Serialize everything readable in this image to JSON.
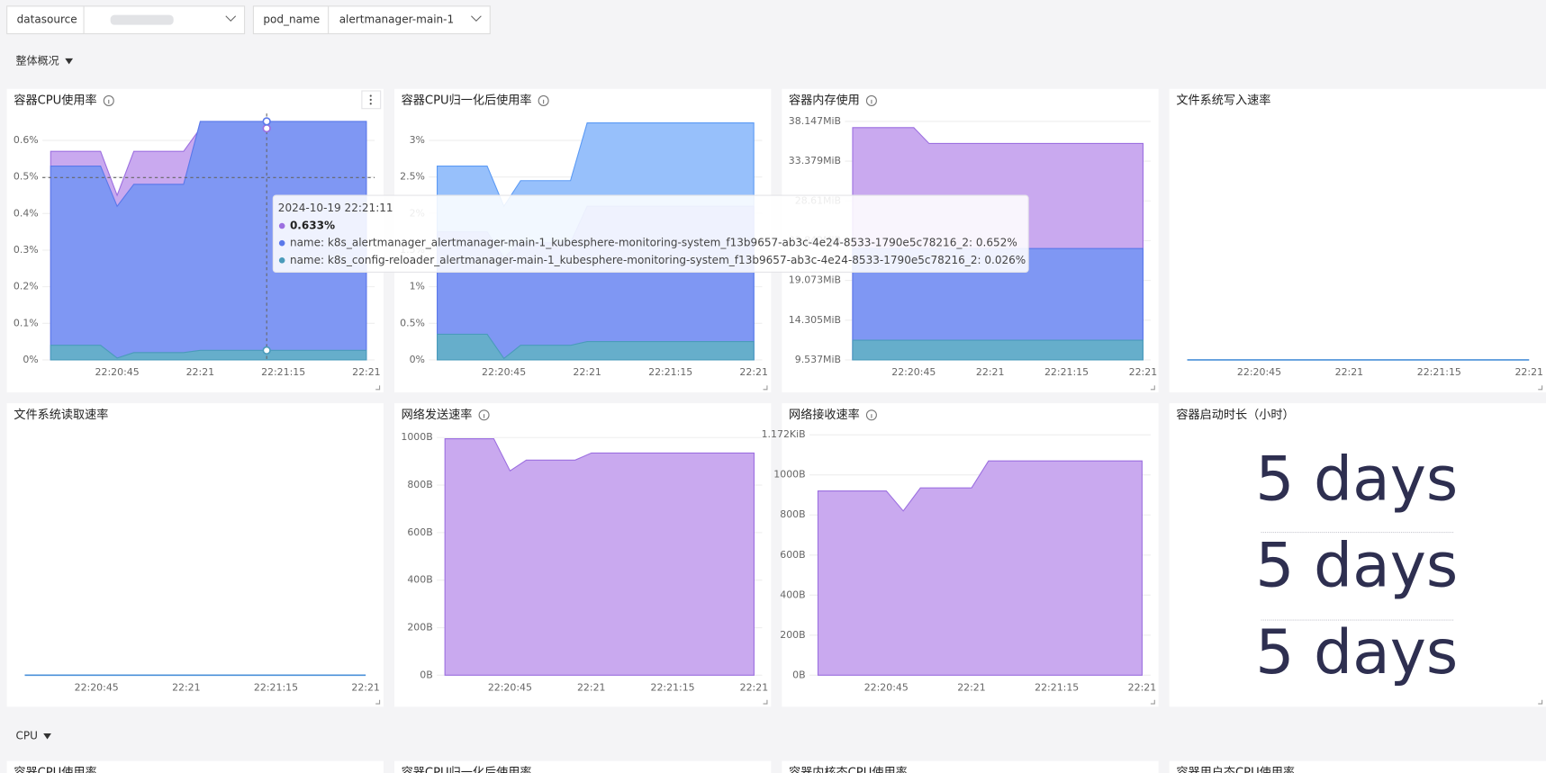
{
  "filters": [
    {
      "label": "datasource"
    },
    {
      "label": "pod_name",
      "value": "alertmanager-main-1"
    }
  ],
  "sections": [
    "整体概况",
    "CPU"
  ],
  "panels": [
    {
      "title": "容器CPU使用率",
      "type": "area",
      "info": true,
      "categories": [
        null,
        null,
        null,
        null,
        "22:20:45",
        null,
        null,
        null,
        null,
        "22:21",
        null,
        null,
        null,
        null,
        "22:21:15",
        null,
        null,
        null,
        null,
        "22:21"
      ],
      "ylim": [
        0,
        0.66
      ],
      "yticks": [
        {
          "value": 0,
          "label": "0%"
        },
        {
          "value": 0.1,
          "label": "0.1%"
        },
        {
          "value": 0.2,
          "label": "0.2%"
        },
        {
          "value": 0.3,
          "label": "0.3%"
        },
        {
          "value": 0.4,
          "label": "0.4%"
        },
        {
          "value": 0.5,
          "label": "0.5%"
        },
        {
          "value": 0.6,
          "label": "0.6%"
        }
      ],
      "series": [
        {
          "color": "#c9a9ef",
          "values": [
            0.57,
            0.57,
            0.57,
            0.57,
            0.45,
            0.57,
            0.57,
            0.57,
            0.57,
            0.633,
            0.633,
            0.633,
            0.633,
            0.633,
            0.633,
            0.633,
            0.633,
            0.633,
            0.633,
            0.633
          ]
        },
        {
          "color": "#7f97f3",
          "values": [
            0.53,
            0.53,
            0.53,
            0.53,
            0.42,
            0.48,
            0.48,
            0.48,
            0.48,
            0.652,
            0.652,
            0.652,
            0.652,
            0.652,
            0.652,
            0.652,
            0.652,
            0.652,
            0.652,
            0.652
          ]
        },
        {
          "color": "#66aecb",
          "values": [
            0.04,
            0.04,
            0.04,
            0.04,
            0.005,
            0.02,
            0.02,
            0.02,
            0.02,
            0.026,
            0.026,
            0.026,
            0.026,
            0.026,
            0.026,
            0.026,
            0.026,
            0.026,
            0.026,
            0.026
          ]
        }
      ],
      "tooltip": {
        "time": "2024-10-19 22:21:11",
        "lines": [
          "0.633%",
          "name: k8s_alertmanager_alertmanager-main-1_kubesphere-monitoring-system_f13b9657-ab3c-4e24-8533-1790e5c78216_2: 0.652%",
          "name: k8s_config-reloader_alertmanager-main-1_kubesphere-monitoring-system_f13b9657-ab3c-4e24-8533-1790e5c78216_2: 0.026%"
        ]
      }
    },
    {
      "title": "容器CPU归一化后使用率",
      "type": "area",
      "info": true,
      "categories": [
        null,
        null,
        null,
        null,
        "22:20:45",
        null,
        null,
        null,
        null,
        "22:21",
        null,
        null,
        null,
        null,
        "22:21:15",
        null,
        null,
        null,
        null,
        "22:21"
      ],
      "ylim": [
        0,
        3.3
      ],
      "yticks": [
        {
          "value": 0,
          "label": "0%"
        },
        {
          "value": 0.5,
          "label": "0.5%"
        },
        {
          "value": 1,
          "label": "1%"
        },
        {
          "value": 1.5,
          "label": "1.5%"
        },
        {
          "value": 2,
          "label": "2%"
        },
        {
          "value": 2.5,
          "label": "2.5%"
        },
        {
          "value": 3,
          "label": "3%"
        }
      ],
      "series": [
        {
          "color": "#97c0fb",
          "values": [
            2.65,
            2.65,
            2.65,
            2.65,
            2.1,
            2.45,
            2.45,
            2.45,
            2.45,
            3.24,
            3.24,
            3.24,
            3.24,
            3.24,
            3.24,
            3.24,
            3.24,
            3.24,
            3.24,
            3.24
          ]
        },
        {
          "color": "#7f97f3",
          "values": [
            1.75,
            1.75,
            1.75,
            1.75,
            1.4,
            1.6,
            1.6,
            1.6,
            1.6,
            2.1,
            2.1,
            2.1,
            2.1,
            2.1,
            2.1,
            2.1,
            2.1,
            2.1,
            2.1,
            2.1
          ]
        },
        {
          "color": "#66aecb",
          "values": [
            0.35,
            0.35,
            0.35,
            0.35,
            0.02,
            0.2,
            0.2,
            0.2,
            0.2,
            0.25,
            0.25,
            0.25,
            0.25,
            0.25,
            0.25,
            0.25,
            0.25,
            0.25,
            0.25,
            0.25
          ]
        }
      ]
    },
    {
      "title": "容器内存使用",
      "type": "area",
      "info": true,
      "categories": [
        null,
        null,
        null,
        null,
        "22:20:45",
        null,
        null,
        null,
        null,
        "22:21",
        null,
        null,
        null,
        null,
        "22:21:15",
        null,
        null,
        null,
        null,
        "22:21"
      ],
      "ylim": [
        9.537,
        38.5
      ],
      "yticks": [
        {
          "value": 9.537,
          "label": "9.537MiB"
        },
        {
          "value": 14.305,
          "label": "14.305MiB"
        },
        {
          "value": 19.073,
          "label": "19.073MiB"
        },
        {
          "value": 23.842,
          "label": "23.842MiB"
        },
        {
          "value": 28.61,
          "label": "28.61MiB"
        },
        {
          "value": 33.379,
          "label": "33.379MiB"
        },
        {
          "value": 38.147,
          "label": "38.147MiB"
        }
      ],
      "series": [
        {
          "color": "#c9a9ef",
          "values": [
            37.4,
            37.4,
            37.4,
            37.4,
            37.4,
            35.5,
            35.5,
            35.5,
            35.5,
            35.5,
            35.5,
            35.5,
            35.5,
            35.5,
            35.5,
            35.5,
            35.5,
            35.5,
            35.5,
            35.5
          ]
        },
        {
          "color": "#7f97f3",
          "values": [
            22.9,
            22.9,
            22.9,
            22.9,
            22.9,
            22.9,
            22.9,
            22.9,
            22.9,
            22.9,
            22.9,
            22.9,
            22.9,
            22.9,
            22.9,
            22.9,
            22.9,
            22.9,
            22.9,
            22.9
          ]
        },
        {
          "color": "#66aecb",
          "values": [
            11.9,
            11.9,
            11.9,
            11.9,
            11.9,
            11.9,
            11.9,
            11.9,
            11.9,
            11.9,
            11.9,
            11.9,
            11.9,
            11.9,
            11.9,
            11.9,
            11.9,
            11.9,
            11.9,
            11.9
          ]
        }
      ]
    },
    {
      "title": "文件系统写入速率",
      "type": "line",
      "categories": [
        null,
        null,
        null,
        null,
        "22:20:45",
        null,
        null,
        null,
        null,
        "22:21",
        null,
        null,
        null,
        null,
        "22:21:15",
        null,
        null,
        null,
        null,
        "22:21"
      ],
      "ylim": [
        0,
        1
      ],
      "yticks": [],
      "series": [
        {
          "color": "#4a90d9",
          "values": [
            0,
            0,
            0,
            0,
            0,
            0,
            0,
            0,
            0,
            0,
            0,
            0,
            0,
            0,
            0,
            0,
            0,
            0,
            0,
            0
          ]
        }
      ]
    },
    {
      "title": "文件系统读取速率",
      "type": "line",
      "categories": [
        null,
        null,
        null,
        null,
        "22:20:45",
        null,
        null,
        null,
        null,
        "22:21",
        null,
        null,
        null,
        null,
        "22:21:15",
        null,
        null,
        null,
        null,
        "22:21"
      ],
      "ylim": [
        0,
        1
      ],
      "yticks": [],
      "series": [
        {
          "color": "#4a90d9",
          "values": [
            0,
            0,
            0,
            0,
            0,
            0,
            0,
            0,
            0,
            0,
            0,
            0,
            0,
            0,
            0,
            0,
            0,
            0,
            0,
            0
          ]
        }
      ]
    },
    {
      "title": "网络发送速率",
      "type": "area",
      "info": true,
      "categories": [
        null,
        null,
        null,
        null,
        "22:20:45",
        null,
        null,
        null,
        null,
        "22:21",
        null,
        null,
        null,
        null,
        "22:21:15",
        null,
        null,
        null,
        null,
        "22:21"
      ],
      "ylim": [
        0,
        1020
      ],
      "yticks": [
        {
          "value": 0,
          "label": "0B"
        },
        {
          "value": 200,
          "label": "200B"
        },
        {
          "value": 400,
          "label": "400B"
        },
        {
          "value": 600,
          "label": "600B"
        },
        {
          "value": 800,
          "label": "800B"
        },
        {
          "value": 1000,
          "label": "1000B"
        }
      ],
      "series": [
        {
          "color": "#c9a9ef",
          "values": [
            995,
            995,
            995,
            995,
            860,
            905,
            905,
            905,
            905,
            935,
            935,
            935,
            935,
            935,
            935,
            935,
            935,
            935,
            935,
            935
          ]
        }
      ]
    },
    {
      "title": "网络接收速率",
      "type": "area",
      "info": true,
      "categories": [
        null,
        null,
        null,
        null,
        "22:20:45",
        null,
        null,
        null,
        null,
        "22:21",
        null,
        null,
        null,
        null,
        "22:21:15",
        null,
        null,
        null,
        null,
        "22:21"
      ],
      "ylim": [
        0,
        1210
      ],
      "yticks": [
        {
          "value": 0,
          "label": "0B"
        },
        {
          "value": 200,
          "label": "200B"
        },
        {
          "value": 400,
          "label": "400B"
        },
        {
          "value": 600,
          "label": "600B"
        },
        {
          "value": 800,
          "label": "800B"
        },
        {
          "value": 1000,
          "label": "1000B"
        },
        {
          "value": 1200,
          "label": "1.172KiB"
        }
      ],
      "series": [
        {
          "color": "#c9a9ef",
          "values": [
            920,
            920,
            920,
            920,
            920,
            820,
            935,
            935,
            935,
            935,
            1070,
            1070,
            1070,
            1070,
            1070,
            1070,
            1070,
            1070,
            1070,
            1070
          ]
        }
      ]
    },
    {
      "title": "容器启动时长（小时）",
      "type": "stat",
      "values": [
        "5 days",
        "5 days",
        "5 days"
      ]
    }
  ],
  "cpu_panels": [
    "容器CPU使用率",
    "容器CPU归一化后使用率",
    "容器内核态CPU使用率",
    "容器用户态CPU使用率"
  ]
}
